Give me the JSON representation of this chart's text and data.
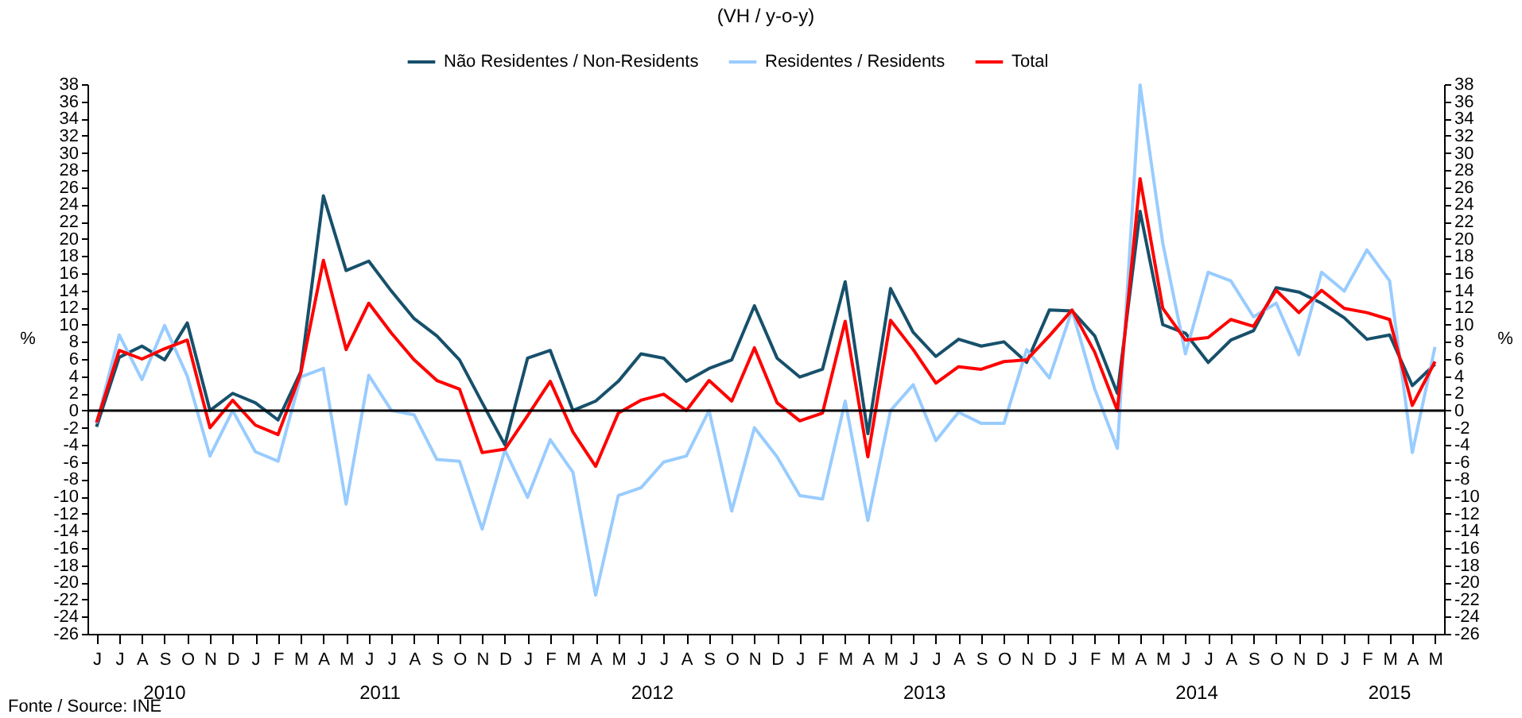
{
  "chart_data": {
    "type": "line",
    "subtitle": "(VH / y-o-y)",
    "ylabel": "%",
    "y2label": "%",
    "categories": [
      "J",
      "J",
      "A",
      "S",
      "O",
      "N",
      "D",
      "J",
      "F",
      "M",
      "A",
      "M",
      "J",
      "J",
      "A",
      "S",
      "O",
      "N",
      "D",
      "J",
      "F",
      "M",
      "A",
      "M",
      "J",
      "J",
      "A",
      "S",
      "O",
      "N",
      "D",
      "J",
      "F",
      "M",
      "A",
      "M",
      "J",
      "J",
      "A",
      "S",
      "O",
      "N",
      "D",
      "J",
      "F",
      "M",
      "A",
      "M",
      "J",
      "J",
      "A",
      "S",
      "O",
      "N",
      "D",
      "J",
      "F",
      "M",
      "A",
      "M"
    ],
    "series": [
      {
        "name": "Não Residentes / Non-Residents",
        "color": "#17506b",
        "values": [
          -1.9,
          6.2,
          7.5,
          5.9,
          10.2,
          0,
          2.0,
          0.9,
          -1.1,
          4.5,
          25,
          16.3,
          17.4,
          13.9,
          10.7,
          8.7,
          5.9,
          0.9,
          -4.0,
          6.1,
          7.0,
          0,
          1.1,
          3.4,
          6.6,
          6.1,
          3.4,
          4.9,
          5.9,
          12.2,
          6.1,
          3.9,
          4.8,
          15.0,
          -2.7,
          14.2,
          9.1,
          6.3,
          8.3,
          7.5,
          8.0,
          5.6,
          11.7,
          11.6,
          8.7,
          2.0,
          23.2,
          10.0,
          9.0,
          5.6,
          8.2,
          9.3,
          14.3,
          13.8,
          12.5,
          10.8,
          8.3,
          8.8,
          2.9,
          5.4
        ]
      },
      {
        "name": "Residentes / Residents",
        "color": "#99ccff",
        "values": [
          -1.5,
          8.8,
          3.6,
          9.9,
          4.0,
          -5.3,
          0,
          -4.8,
          -5.9,
          3.9,
          4.9,
          -10.9,
          4.1,
          0,
          -0.5,
          -5.7,
          -5.9,
          -13.8,
          -4.6,
          -10.1,
          -3.4,
          -7.2,
          -21.5,
          -9.9,
          -9.0,
          -6.0,
          -5.3,
          0,
          -11.7,
          -2.0,
          -5.4,
          -9.9,
          -10.3,
          1.1,
          -12.8,
          0,
          3.0,
          -3.5,
          -0.2,
          -1.5,
          -1.5,
          7.1,
          3.8,
          11.7,
          2.5,
          -4.4,
          37.9,
          19.5,
          6.6,
          16.1,
          15.1,
          10.9,
          12.5,
          6.5,
          16.1,
          13.9,
          18.7,
          15.1,
          -4.9,
          7.4
        ]
      },
      {
        "name": "Total",
        "color": "#ff0000",
        "values": [
          -1.4,
          7.0,
          6.0,
          7.2,
          8.2,
          -2.0,
          1.2,
          -1.7,
          -2.8,
          4.3,
          17.5,
          7.1,
          12.5,
          9.0,
          5.9,
          3.5,
          2.5,
          -4.9,
          -4.5,
          -0.6,
          3.4,
          -2.5,
          -6.5,
          -0.3,
          1.2,
          1.9,
          0,
          3.5,
          1.1,
          7.3,
          0.9,
          -1.2,
          -0.3,
          10.4,
          -5.4,
          10.5,
          7.1,
          3.2,
          5.1,
          4.8,
          5.7,
          5.9,
          8.7,
          11.7,
          6.8,
          0,
          27.0,
          11.9,
          8.2,
          8.5,
          10.6,
          9.8,
          14.0,
          11.4,
          14.0,
          11.9,
          11.4,
          10.6,
          0.6,
          5.7
        ]
      }
    ],
    "ylim": [
      -26,
      38
    ],
    "yticks": [
      -26,
      -24,
      -22,
      -20,
      -18,
      -16,
      -14,
      -12,
      -10,
      -8,
      -6,
      -4,
      -2,
      0,
      2,
      4,
      6,
      8,
      10,
      12,
      14,
      16,
      18,
      20,
      22,
      24,
      26,
      28,
      30,
      32,
      34,
      36,
      38
    ],
    "y2lim": [
      -26,
      38
    ],
    "y2ticks": [
      -26,
      -24,
      -22,
      -20,
      -18,
      -16,
      -14,
      -12,
      -10,
      -8,
      -6,
      -4,
      -2,
      0,
      2,
      4,
      6,
      8,
      10,
      12,
      14,
      16,
      18,
      20,
      22,
      24,
      26,
      28,
      30,
      32,
      34,
      36,
      38
    ],
    "ref_lines": [
      {
        "axis": "y2",
        "value": 0,
        "color": "#000000"
      }
    ],
    "annotations": [
      "2010",
      "2011",
      "2012",
      "2013",
      "2014",
      "2015",
      "Fonte / Source: INE"
    ],
    "legend": "top",
    "grid": false,
    "line_style": "solid",
    "marker": "none"
  }
}
